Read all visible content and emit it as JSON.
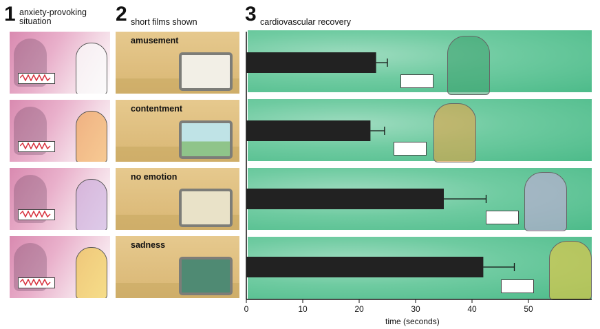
{
  "headers": [
    {
      "num": "1",
      "label": "anxiety-provoking\nsituation"
    },
    {
      "num": "2",
      "label": "short films shown"
    },
    {
      "num": "3",
      "label": "cardiovascular recovery"
    }
  ],
  "films": [
    "amusement",
    "contentment",
    "no emotion",
    "sadness"
  ],
  "chart_data": {
    "type": "bar",
    "orientation": "horizontal",
    "categories": [
      "amusement",
      "contentment",
      "no emotion",
      "sadness"
    ],
    "values": [
      23,
      22,
      35,
      42
    ],
    "errors": [
      2,
      2.5,
      7.5,
      5.5
    ],
    "xlabel": "time (seconds)",
    "xlim": [
      0,
      60
    ],
    "xticks": [
      0,
      10,
      20,
      30,
      40,
      50
    ],
    "bar_color": "#222222",
    "background": "illustrated green panels"
  }
}
